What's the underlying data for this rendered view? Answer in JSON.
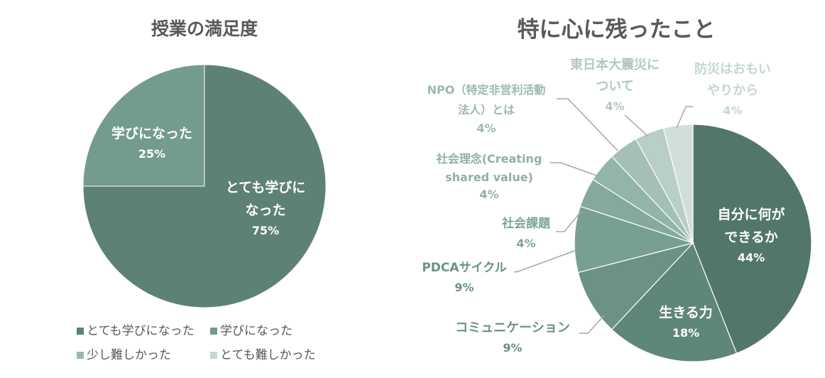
{
  "chart_data": [
    {
      "type": "pie",
      "title": "授業の満足度",
      "categories": [
        "とても学びになった",
        "学びになった",
        "少し難しかった",
        "とても難しかった"
      ],
      "values": [
        75,
        25,
        0,
        0
      ],
      "value_labels": [
        "75%",
        "25%",
        "",
        ""
      ],
      "slice_labels": [
        "とても学びに\nなった",
        "学びになった",
        "",
        ""
      ],
      "colors": [
        "#5e8176",
        "#739b8f",
        "#9bb8ae",
        "#c7d7d2"
      ],
      "legend": {
        "position": "bottom",
        "entries": [
          "とても学びになった",
          "学びになった",
          "少し難しかった",
          "とても難しかった"
        ]
      }
    },
    {
      "type": "pie",
      "title": "特に心に残ったこと",
      "categories": [
        "自分に何ができるか",
        "生きる力",
        "コミュニケーション",
        "PDCAサイクル",
        "社会課題",
        "社会理念(Creating shared value)",
        "NPO（特定非営利活動法人）とは",
        "東日本大震災について",
        "防災はおもいやりから"
      ],
      "values": [
        44,
        18,
        9,
        9,
        4,
        4,
        4,
        4,
        4
      ],
      "value_labels": [
        "44%",
        "18%",
        "9%",
        "9%",
        "4%",
        "4%",
        "4%",
        "4%",
        "4%"
      ],
      "slice_labels": [
        "自分に何が\nできるか",
        "生きる力",
        "コミュニケーション",
        "PDCAサイクル",
        "社会課題",
        "社会理念(Creating\nshared value)",
        "NPO（特定非営利活動\n法人）とは",
        "東日本大震災に\nついて",
        "防災はおもい\nやりから"
      ],
      "colors": [
        "#52766b",
        "#5f867a",
        "#6b9285",
        "#78a092",
        "#85aa9d",
        "#93b4a9",
        "#a4c0b6",
        "#b8cec6",
        "#d1dfdb"
      ],
      "label_colors": [
        "#ffffff",
        "#ffffff",
        "#6a9283",
        "#6a9283",
        "#7ea59a",
        "#8fb0a6",
        "#9cb8af",
        "#b2c7c0",
        "#c5d5d0"
      ]
    }
  ]
}
